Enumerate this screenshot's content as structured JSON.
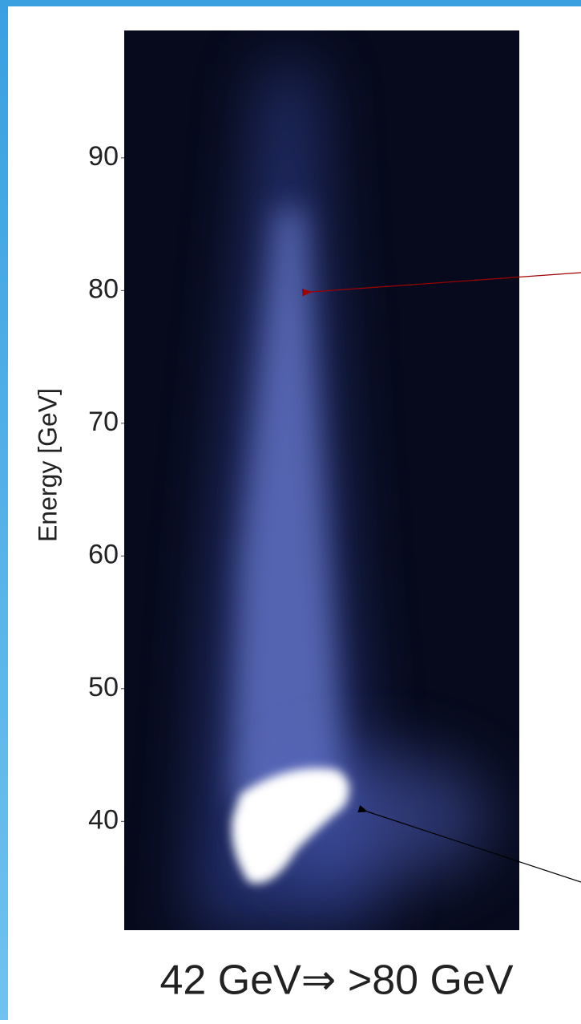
{
  "chart_data": {
    "type": "image",
    "title": "42 GeV⇒ >80 GeV",
    "y_label": "Energy [GeV]",
    "ylim": [
      31.8,
      99.6
    ],
    "yticks": [
      90,
      80,
      70,
      60,
      50,
      40
    ]
  }
}
